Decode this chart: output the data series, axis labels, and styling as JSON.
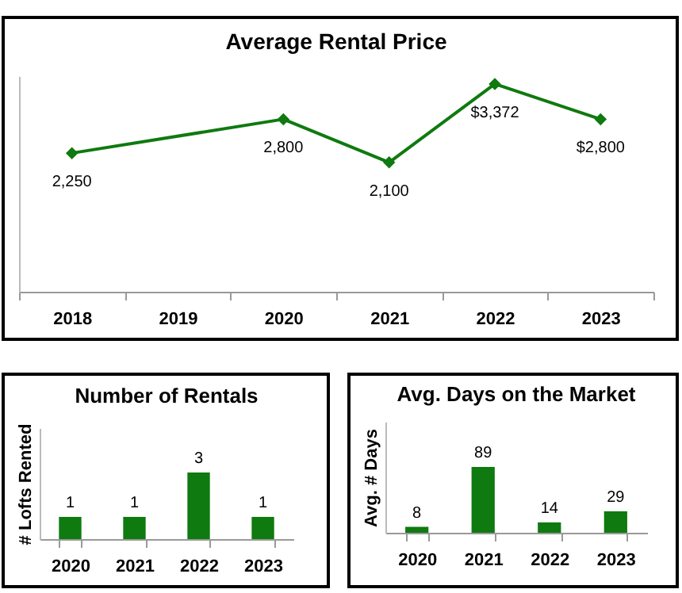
{
  "chart_data": [
    {
      "type": "line",
      "title": "Average Rental Price",
      "categories": [
        "2018",
        "2019",
        "2020",
        "2021",
        "2022",
        "2023"
      ],
      "series": [
        {
          "color": "#0f7a0f",
          "values": [
            2250,
            null,
            2800,
            2100,
            3372,
            2800
          ],
          "value_labels": [
            "2,250",
            null,
            "2,800",
            "2,100",
            "$3,372",
            "$2,800"
          ]
        }
      ],
      "ylim": [
        0,
        3500
      ],
      "tick_labels": "x",
      "marker": "diamond",
      "line_style": "solid"
    },
    {
      "type": "bar",
      "title": "Number of Rentals",
      "ylabel": "# Lofts Rented",
      "categories": [
        "2020",
        "2021",
        "2022",
        "2023"
      ],
      "series": [
        {
          "color": "#0f7a0f",
          "values": [
            1,
            1,
            3,
            1
          ]
        }
      ],
      "ylim": [
        0,
        5
      ],
      "tick_labels": "x",
      "data_labels": true
    },
    {
      "type": "bar",
      "title": "Avg. Days on the Market",
      "ylabel": "Avg. # Days",
      "categories": [
        "2020",
        "2021",
        "2022",
        "2023"
      ],
      "series": [
        {
          "color": "#0f7a0f",
          "values": [
            8,
            89,
            14,
            29
          ]
        }
      ],
      "ylim": [
        0,
        150
      ],
      "tick_labels": "x",
      "data_labels": true
    }
  ]
}
